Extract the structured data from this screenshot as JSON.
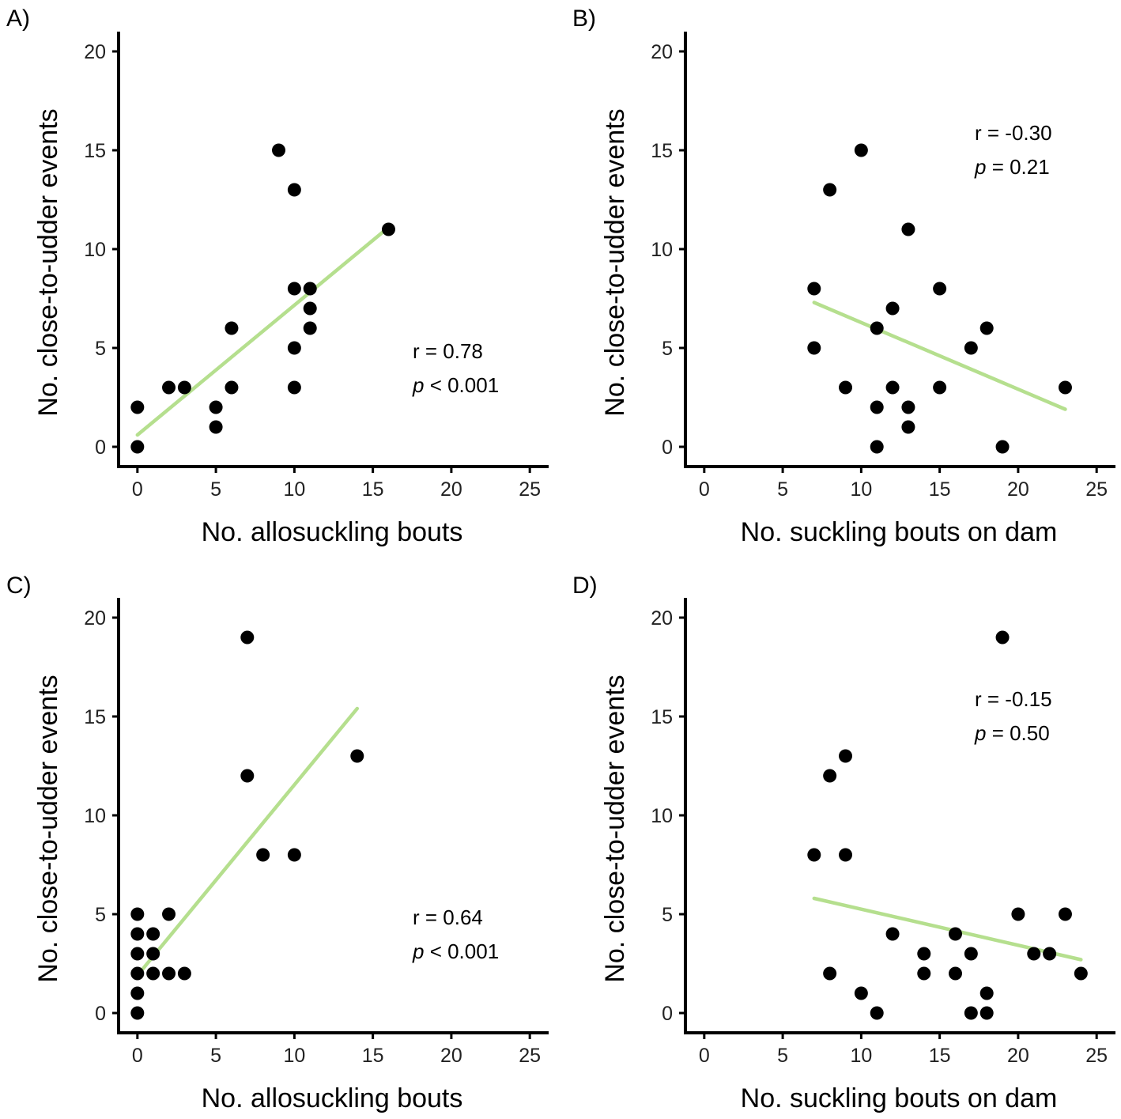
{
  "figure": {
    "colors": {
      "trend_line": "#b5df8e",
      "point": "#000000",
      "axis": "#000000"
    }
  },
  "chart_data": [
    {
      "type": "scatter",
      "panel_label": "A)",
      "title": "",
      "xlabel": "No. allosuckling bouts",
      "ylabel": "No. close-to-udder events",
      "xlim": [
        -1.2,
        26.2
      ],
      "ylim": [
        -1,
        21
      ],
      "xticks": [
        0,
        5,
        10,
        15,
        20,
        25
      ],
      "yticks": [
        0,
        5,
        10,
        15,
        20
      ],
      "points": [
        {
          "x": 0,
          "y": 0
        },
        {
          "x": 0,
          "y": 2
        },
        {
          "x": 2,
          "y": 3
        },
        {
          "x": 3,
          "y": 3
        },
        {
          "x": 5,
          "y": 2
        },
        {
          "x": 5,
          "y": 1
        },
        {
          "x": 6,
          "y": 6
        },
        {
          "x": 6,
          "y": 3
        },
        {
          "x": 9,
          "y": 15
        },
        {
          "x": 10,
          "y": 13
        },
        {
          "x": 10,
          "y": 8
        },
        {
          "x": 10,
          "y": 5
        },
        {
          "x": 10,
          "y": 3
        },
        {
          "x": 11,
          "y": 8
        },
        {
          "x": 11,
          "y": 7
        },
        {
          "x": 11,
          "y": 6
        },
        {
          "x": 16,
          "y": 11
        }
      ],
      "trend_line": {
        "x": [
          0,
          16
        ],
        "y": [
          0.6,
          11.1
        ]
      },
      "stats": {
        "r_text": "r = 0.78",
        "p_symbol": "p",
        "p_text": " < 0.001",
        "position": "right-middle"
      },
      "grid": false
    },
    {
      "type": "scatter",
      "panel_label": "B)",
      "title": "",
      "xlabel": "No. suckling bouts on dam",
      "ylabel": "No. close-to-udder events",
      "xlim": [
        -1.2,
        26.2
      ],
      "ylim": [
        -1,
        21
      ],
      "xticks": [
        0,
        5,
        10,
        15,
        20,
        25
      ],
      "yticks": [
        0,
        5,
        10,
        15,
        20
      ],
      "points": [
        {
          "x": 7,
          "y": 8
        },
        {
          "x": 7,
          "y": 5
        },
        {
          "x": 8,
          "y": 13
        },
        {
          "x": 9,
          "y": 3
        },
        {
          "x": 10,
          "y": 15
        },
        {
          "x": 11,
          "y": 6
        },
        {
          "x": 11,
          "y": 2
        },
        {
          "x": 11,
          "y": 0
        },
        {
          "x": 12,
          "y": 7
        },
        {
          "x": 12,
          "y": 3
        },
        {
          "x": 13,
          "y": 11
        },
        {
          "x": 13,
          "y": 2
        },
        {
          "x": 13,
          "y": 1
        },
        {
          "x": 15,
          "y": 8
        },
        {
          "x": 15,
          "y": 3
        },
        {
          "x": 17,
          "y": 5
        },
        {
          "x": 18,
          "y": 6
        },
        {
          "x": 19,
          "y": 0
        },
        {
          "x": 23,
          "y": 3
        }
      ],
      "trend_line": {
        "x": [
          7,
          23
        ],
        "y": [
          7.3,
          1.9
        ]
      },
      "stats": {
        "r_text": "r = -0.30",
        "p_symbol": "p",
        "p_text": " = 0.21",
        "position": "top-right"
      },
      "grid": false
    },
    {
      "type": "scatter",
      "panel_label": "C)",
      "title": "",
      "xlabel": "No. allosuckling bouts",
      "ylabel": "No. close-to-udder events",
      "xlim": [
        -1.2,
        26.2
      ],
      "ylim": [
        -1,
        21
      ],
      "xticks": [
        0,
        5,
        10,
        15,
        20,
        25
      ],
      "yticks": [
        0,
        5,
        10,
        15,
        20
      ],
      "points": [
        {
          "x": 0,
          "y": 0
        },
        {
          "x": 0,
          "y": 1
        },
        {
          "x": 0,
          "y": 2
        },
        {
          "x": 0,
          "y": 3
        },
        {
          "x": 0,
          "y": 4
        },
        {
          "x": 0,
          "y": 5
        },
        {
          "x": 1,
          "y": 2
        },
        {
          "x": 1,
          "y": 3
        },
        {
          "x": 1,
          "y": 4
        },
        {
          "x": 2,
          "y": 2
        },
        {
          "x": 2,
          "y": 5
        },
        {
          "x": 3,
          "y": 2
        },
        {
          "x": 7,
          "y": 19
        },
        {
          "x": 7,
          "y": 12
        },
        {
          "x": 8,
          "y": 8
        },
        {
          "x": 10,
          "y": 8
        },
        {
          "x": 14,
          "y": 13
        }
      ],
      "trend_line": {
        "x": [
          0,
          14
        ],
        "y": [
          1.9,
          15.4
        ]
      },
      "stats": {
        "r_text": "r = 0.64",
        "p_symbol": "p",
        "p_text": " < 0.001",
        "position": "right-bottom"
      },
      "grid": false
    },
    {
      "type": "scatter",
      "panel_label": "D)",
      "title": "",
      "xlabel": "No. suckling bouts on dam",
      "ylabel": "No. close-to-udder events",
      "xlim": [
        -1.2,
        26.2
      ],
      "ylim": [
        -1,
        21
      ],
      "xticks": [
        0,
        5,
        10,
        15,
        20,
        25
      ],
      "yticks": [
        0,
        5,
        10,
        15,
        20
      ],
      "points": [
        {
          "x": 7,
          "y": 8
        },
        {
          "x": 8,
          "y": 12
        },
        {
          "x": 8,
          "y": 2
        },
        {
          "x": 9,
          "y": 13
        },
        {
          "x": 9,
          "y": 8
        },
        {
          "x": 10,
          "y": 1
        },
        {
          "x": 11,
          "y": 0
        },
        {
          "x": 12,
          "y": 4
        },
        {
          "x": 14,
          "y": 3
        },
        {
          "x": 14,
          "y": 2
        },
        {
          "x": 16,
          "y": 4
        },
        {
          "x": 16,
          "y": 2
        },
        {
          "x": 17,
          "y": 3
        },
        {
          "x": 17,
          "y": 0
        },
        {
          "x": 18,
          "y": 1
        },
        {
          "x": 18,
          "y": 0
        },
        {
          "x": 19,
          "y": 19
        },
        {
          "x": 20,
          "y": 5
        },
        {
          "x": 21,
          "y": 3
        },
        {
          "x": 22,
          "y": 3
        },
        {
          "x": 23,
          "y": 5
        },
        {
          "x": 24,
          "y": 2
        }
      ],
      "trend_line": {
        "x": [
          7,
          24
        ],
        "y": [
          5.8,
          2.7
        ]
      },
      "stats": {
        "r_text": "r = -0.15",
        "p_symbol": "p",
        "p_text": " = 0.50",
        "position": "top-right"
      },
      "grid": false
    }
  ]
}
